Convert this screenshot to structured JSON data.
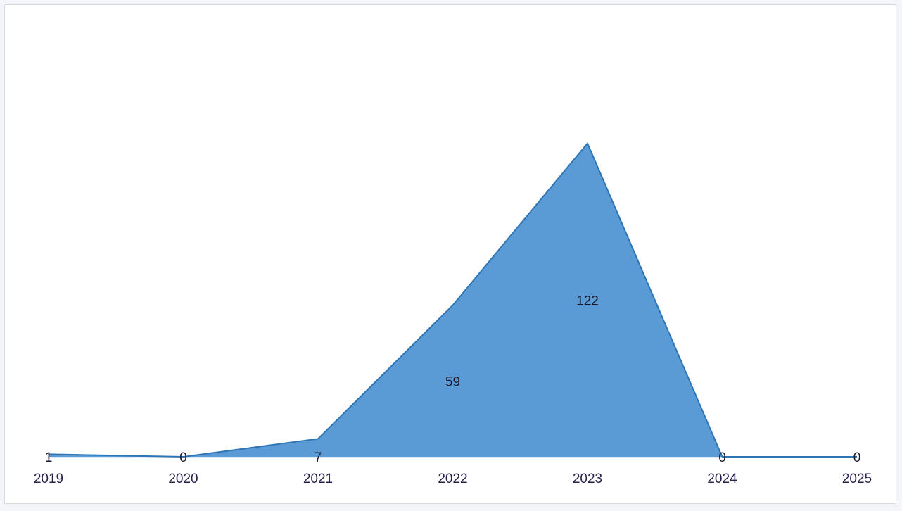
{
  "chart_data": {
    "type": "area",
    "categories": [
      "2019",
      "2020",
      "2021",
      "2022",
      "2023",
      "2024",
      "2025"
    ],
    "values": [
      1,
      0,
      7,
      59,
      122,
      0,
      0
    ],
    "data_labels": [
      "1",
      "0",
      "7",
      "59",
      "122",
      "0",
      "0"
    ],
    "title": "",
    "xlabel": "",
    "ylabel": "",
    "ylim": [
      0,
      146
    ],
    "grid": false,
    "legend": "none",
    "colors": {
      "fill": "#5b9bd5",
      "line": "#2e75b6",
      "baseline": "#d9e1ec",
      "text": "#2a1f4a"
    }
  }
}
